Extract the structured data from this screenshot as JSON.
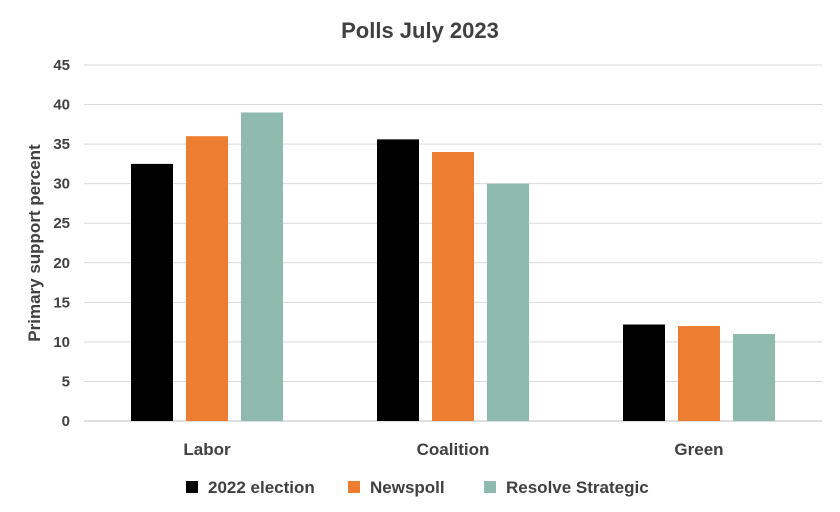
{
  "chart_data": {
    "type": "bar",
    "title": "Polls  July 2023",
    "xlabel": "",
    "ylabel": "Primary support percent",
    "categories": [
      "Labor",
      "Coalition",
      "Green"
    ],
    "series": [
      {
        "name": "2022 election",
        "color": "#000000",
        "values": [
          32.5,
          35.6,
          12.2
        ]
      },
      {
        "name": "Newspoll",
        "color": "#ED7D31",
        "values": [
          36,
          34,
          12
        ]
      },
      {
        "name": "Resolve Strategic",
        "color": "#8FBBAF",
        "values": [
          39,
          30,
          11
        ]
      }
    ],
    "ylim": [
      0,
      45
    ],
    "yticks": [
      0,
      5,
      10,
      15,
      20,
      25,
      30,
      35,
      40,
      45
    ],
    "grid": true,
    "legend_position": "bottom"
  }
}
